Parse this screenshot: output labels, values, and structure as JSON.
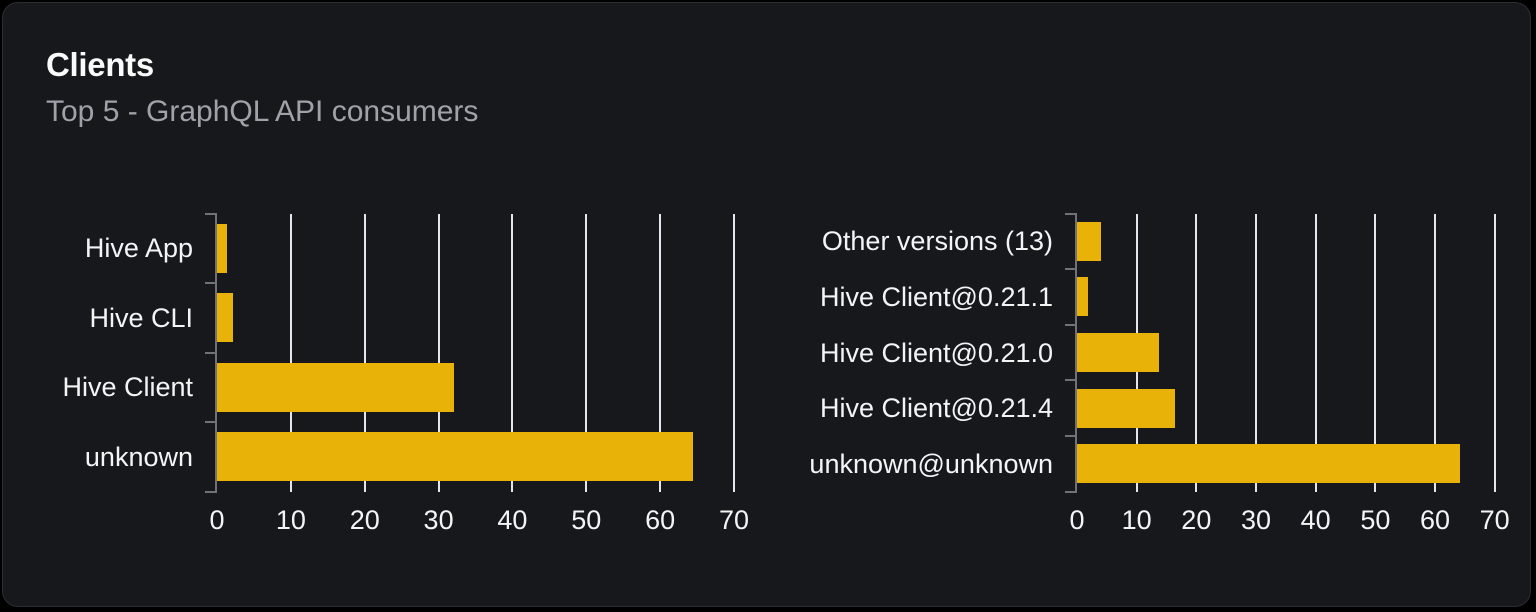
{
  "card": {
    "title": "Clients",
    "subtitle": "Top 5 - GraphQL API consumers"
  },
  "colors": {
    "page_background": "#000000",
    "card_background": "#17181c",
    "card_border": "#2c2d33",
    "bar": "#e9b208",
    "gridline": "#e4e5ee",
    "axis": "#71717a",
    "tick_label": "#f4f4f5",
    "title": "#fafafa",
    "subtitle": "#a1a1aa"
  },
  "chart_data": [
    {
      "type": "bar",
      "orientation": "horizontal",
      "name": "top-clients",
      "categories": [
        "Hive App",
        "Hive CLI",
        "Hive Client",
        "unknown"
      ],
      "values": [
        1.4,
        2.1,
        32.1,
        64.4
      ],
      "x_ticks": [
        0,
        10,
        20,
        30,
        40,
        50,
        60,
        70
      ],
      "xlim": [
        0,
        70
      ],
      "grid": true,
      "legend": false
    },
    {
      "type": "bar",
      "orientation": "horizontal",
      "name": "top-client-versions",
      "categories": [
        "Other versions (13)",
        "Hive Client@0.21.1",
        "Hive Client@0.21.0",
        "Hive Client@0.21.4",
        "unknown@unknown"
      ],
      "values": [
        4.0,
        1.9,
        13.8,
        16.4,
        64.2
      ],
      "x_ticks": [
        0,
        10,
        20,
        30,
        40,
        50,
        60,
        70
      ],
      "xlim": [
        0,
        70
      ],
      "grid": true,
      "legend": false
    }
  ]
}
